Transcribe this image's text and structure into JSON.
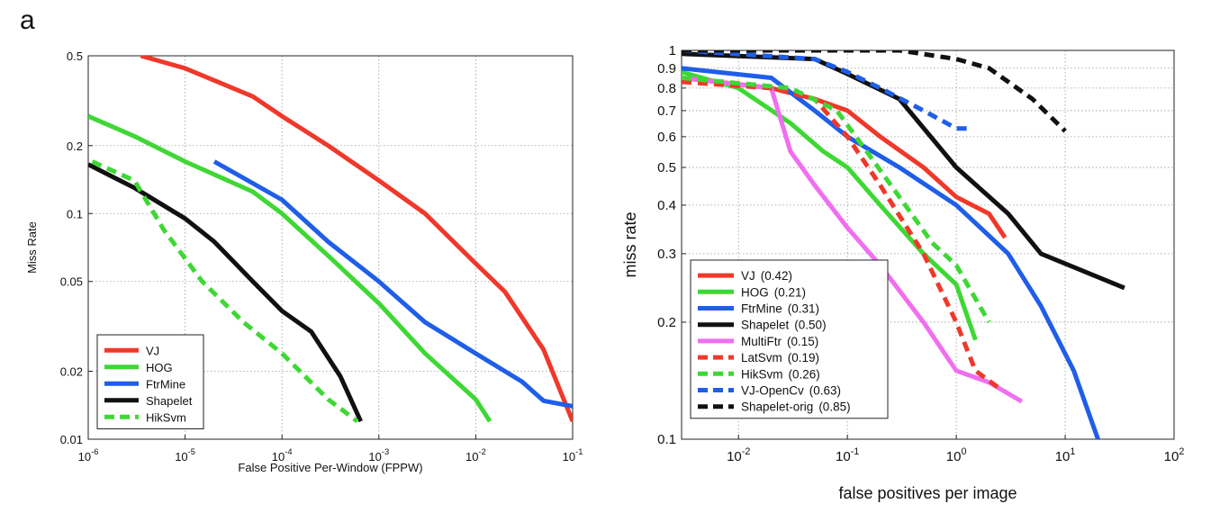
{
  "panel_label": "a",
  "chart_data": [
    {
      "type": "line",
      "xscale": "log",
      "yscale": "log",
      "xlim": [
        1e-06,
        0.1
      ],
      "ylim": [
        0.01,
        0.5
      ],
      "xlabel": "False Positive Per-Window (FPPW)",
      "ylabel": "Miss Rate",
      "grid": true,
      "legend_position": "bottom-left",
      "x_ticks": [
        {
          "value": 1e-06,
          "base": "10",
          "exp": "-6"
        },
        {
          "value": 1e-05,
          "base": "10",
          "exp": "-5"
        },
        {
          "value": 0.0001,
          "base": "10",
          "exp": "-4"
        },
        {
          "value": 0.001,
          "base": "10",
          "exp": "-3"
        },
        {
          "value": 0.01,
          "base": "10",
          "exp": "-2"
        },
        {
          "value": 0.1,
          "base": "10",
          "exp": "-1"
        }
      ],
      "y_ticks": [
        {
          "value": 0.01,
          "label": "0.01"
        },
        {
          "value": 0.02,
          "label": "0.02"
        },
        {
          "value": 0.05,
          "label": "0.05"
        },
        {
          "value": 0.1,
          "label": "0.1"
        },
        {
          "value": 0.2,
          "label": "0.2"
        },
        {
          "value": 0.5,
          "label": "0.5"
        }
      ],
      "series": [
        {
          "name": "VJ",
          "color": "#f0382a",
          "dash": false,
          "points": [
            [
              3.5e-06,
              0.5
            ],
            [
              1e-05,
              0.44
            ],
            [
              5e-05,
              0.33
            ],
            [
              0.0001,
              0.27
            ],
            [
              0.0003,
              0.2
            ],
            [
              0.001,
              0.14
            ],
            [
              0.003,
              0.1
            ],
            [
              0.01,
              0.06
            ],
            [
              0.02,
              0.045
            ],
            [
              0.05,
              0.025
            ],
            [
              0.1,
              0.012
            ]
          ]
        },
        {
          "name": "HOG",
          "color": "#3ed834",
          "dash": false,
          "points": [
            [
              1e-06,
              0.27
            ],
            [
              3e-06,
              0.22
            ],
            [
              1e-05,
              0.17
            ],
            [
              5e-05,
              0.125
            ],
            [
              0.0001,
              0.1
            ],
            [
              0.0003,
              0.065
            ],
            [
              0.001,
              0.04
            ],
            [
              0.003,
              0.024
            ],
            [
              0.01,
              0.015
            ],
            [
              0.014,
              0.012
            ]
          ]
        },
        {
          "name": "FtrMine",
          "color": "#1f5ee8",
          "dash": false,
          "points": [
            [
              2e-05,
              0.17
            ],
            [
              0.0001,
              0.115
            ],
            [
              0.0003,
              0.075
            ],
            [
              0.001,
              0.05
            ],
            [
              0.003,
              0.033
            ],
            [
              0.01,
              0.024
            ],
            [
              0.03,
              0.018
            ],
            [
              0.05,
              0.0148
            ],
            [
              0.1,
              0.014
            ]
          ]
        },
        {
          "name": "Shapelet",
          "color": "#111111",
          "dash": false,
          "points": [
            [
              1e-06,
              0.165
            ],
            [
              3e-06,
              0.13
            ],
            [
              1e-05,
              0.095
            ],
            [
              2e-05,
              0.075
            ],
            [
              5e-05,
              0.05
            ],
            [
              0.0001,
              0.037
            ],
            [
              0.0002,
              0.03
            ],
            [
              0.0004,
              0.019
            ],
            [
              0.00065,
              0.012
            ]
          ]
        },
        {
          "name": "HikSvm",
          "color": "#3ed834",
          "dash": true,
          "points": [
            [
              1.1e-06,
              0.17
            ],
            [
              3e-06,
              0.14
            ],
            [
              6e-06,
              0.085
            ],
            [
              1.5e-05,
              0.05
            ],
            [
              4e-05,
              0.033
            ],
            [
              0.0001,
              0.024
            ],
            [
              0.0003,
              0.015
            ],
            [
              0.0006,
              0.012
            ]
          ]
        }
      ]
    },
    {
      "type": "line",
      "xscale": "log",
      "yscale": "log",
      "xlim": [
        0.003,
        100
      ],
      "ylim": [
        0.1,
        1
      ],
      "xlabel": "false positives per image",
      "ylabel": "miss rate",
      "grid": true,
      "legend_position": "bottom-left",
      "x_ticks": [
        {
          "value": 0.01,
          "base": "10",
          "exp": "-2"
        },
        {
          "value": 0.1,
          "base": "10",
          "exp": "-1"
        },
        {
          "value": 1,
          "base": "10",
          "exp": "0"
        },
        {
          "value": 10,
          "base": "10",
          "exp": "1"
        },
        {
          "value": 100,
          "base": "10",
          "exp": "2"
        }
      ],
      "y_ticks": [
        {
          "value": 0.1,
          "label": "0.1"
        },
        {
          "value": 0.2,
          "label": "0.2"
        },
        {
          "value": 0.3,
          "label": "0.3"
        },
        {
          "value": 0.4,
          "label": "0.4"
        },
        {
          "value": 0.5,
          "label": "0.5"
        },
        {
          "value": 0.6,
          "label": "0.6"
        },
        {
          "value": 0.7,
          "label": "0.7"
        },
        {
          "value": 0.8,
          "label": "0.8"
        },
        {
          "value": 0.9,
          "label": "0.9"
        },
        {
          "value": 1,
          "label": "1"
        }
      ],
      "series": [
        {
          "name": "VJ",
          "score": "(0.42)",
          "color": "#f0382a",
          "dash": false,
          "points": [
            [
              0.003,
              0.85
            ],
            [
              0.02,
              0.8
            ],
            [
              0.05,
              0.75
            ],
            [
              0.1,
              0.7
            ],
            [
              0.2,
              0.6
            ],
            [
              0.5,
              0.5
            ],
            [
              1,
              0.42
            ],
            [
              2,
              0.38
            ],
            [
              2.8,
              0.33
            ]
          ]
        },
        {
          "name": "HOG",
          "score": "(0.21)",
          "color": "#3ed834",
          "dash": false,
          "points": [
            [
              0.003,
              0.88
            ],
            [
              0.01,
              0.8
            ],
            [
              0.03,
              0.65
            ],
            [
              0.06,
              0.55
            ],
            [
              0.1,
              0.5
            ],
            [
              0.2,
              0.4
            ],
            [
              0.5,
              0.3
            ],
            [
              1,
              0.25
            ],
            [
              1.5,
              0.18
            ]
          ]
        },
        {
          "name": "FtrMine",
          "score": "(0.31)",
          "color": "#1f5ee8",
          "dash": false,
          "points": [
            [
              0.003,
              0.9
            ],
            [
              0.02,
              0.85
            ],
            [
              0.05,
              0.7
            ],
            [
              0.1,
              0.6
            ],
            [
              0.3,
              0.5
            ],
            [
              1,
              0.4
            ],
            [
              3,
              0.3
            ],
            [
              6,
              0.22
            ],
            [
              12,
              0.15
            ],
            [
              20,
              0.1
            ]
          ]
        },
        {
          "name": "Shapelet",
          "score": "(0.50)",
          "color": "#111111",
          "dash": false,
          "points": [
            [
              0.003,
              0.98
            ],
            [
              0.05,
              0.95
            ],
            [
              0.1,
              0.87
            ],
            [
              0.3,
              0.75
            ],
            [
              1,
              0.5
            ],
            [
              3,
              0.38
            ],
            [
              6,
              0.3
            ],
            [
              15,
              0.27
            ],
            [
              35,
              0.245
            ]
          ]
        },
        {
          "name": "MultiFtr",
          "score": "(0.15)",
          "color": "#f06ef0",
          "dash": false,
          "points": [
            [
              0.003,
              0.85
            ],
            [
              0.02,
              0.8
            ],
            [
              0.03,
              0.55
            ],
            [
              0.05,
              0.45
            ],
            [
              0.1,
              0.35
            ],
            [
              0.2,
              0.28
            ],
            [
              0.5,
              0.2
            ],
            [
              1,
              0.15
            ],
            [
              2,
              0.14
            ],
            [
              4,
              0.125
            ]
          ]
        },
        {
          "name": "LatSvm",
          "score": "(0.19)",
          "color": "#f0382a",
          "dash": true,
          "points": [
            [
              0.003,
              0.83
            ],
            [
              0.02,
              0.8
            ],
            [
              0.05,
              0.75
            ],
            [
              0.1,
              0.6
            ],
            [
              0.2,
              0.45
            ],
            [
              0.5,
              0.3
            ],
            [
              1,
              0.2
            ],
            [
              1.5,
              0.15
            ],
            [
              2.5,
              0.135
            ]
          ]
        },
        {
          "name": "HikSvm",
          "score": "(0.26)",
          "color": "#3ed834",
          "dash": true,
          "points": [
            [
              0.003,
              0.85
            ],
            [
              0.03,
              0.8
            ],
            [
              0.08,
              0.7
            ],
            [
              0.15,
              0.55
            ],
            [
              0.3,
              0.42
            ],
            [
              0.6,
              0.32
            ],
            [
              1,
              0.28
            ],
            [
              2,
              0.2
            ]
          ]
        },
        {
          "name": "VJ-OpenCv",
          "score": "(0.63)",
          "color": "#1f5ee8",
          "dash": true,
          "points": [
            [
              0.003,
              1.0
            ],
            [
              0.05,
              0.95
            ],
            [
              0.1,
              0.88
            ],
            [
              0.2,
              0.8
            ],
            [
              0.5,
              0.7
            ],
            [
              1,
              0.63
            ],
            [
              1.3,
              0.63
            ]
          ]
        },
        {
          "name": "Shapelet-orig",
          "score": "(0.85)",
          "color": "#111111",
          "dash": true,
          "points": [
            [
              0.003,
              1.0
            ],
            [
              0.3,
              1.0
            ],
            [
              1,
              0.95
            ],
            [
              2,
              0.9
            ],
            [
              5,
              0.75
            ],
            [
              10,
              0.62
            ]
          ]
        }
      ]
    }
  ]
}
